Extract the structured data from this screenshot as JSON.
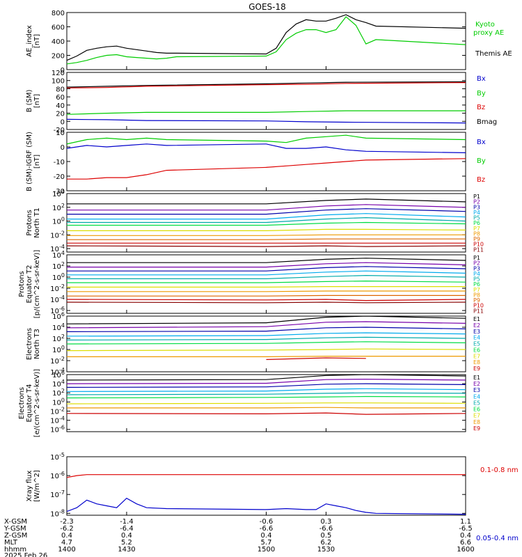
{
  "title": "GOES-18",
  "colors": {
    "black": "#000000",
    "green": "#00cc00",
    "blue": "#0000cc",
    "red": "#dd0000",
    "purple": "#7700aa",
    "navy": "#0000aa",
    "cyan": "#00aaee",
    "teal": "#00aaaa",
    "lgreen": "#00dd44",
    "yellow": "#dddd00",
    "orange": "#ee9900",
    "dorange": "#dd6600",
    "dred": "#cc0000",
    "dark": "#880000"
  },
  "chart_data": [
    {
      "type": "line",
      "ylabel": "AE_index\n[nT]",
      "ylim": [
        0,
        800
      ],
      "ticks": [
        "800",
        "600",
        "400",
        "200",
        "0"
      ],
      "tickvals": [
        800,
        600,
        400,
        200,
        0
      ],
      "scale": "linear",
      "x": [
        1400,
        1405,
        1410,
        1415,
        1420,
        1425,
        1430,
        1435,
        1440,
        1445,
        1450,
        1455,
        1500,
        1505,
        1510,
        1515,
        1520,
        1525,
        1530,
        1535,
        1540,
        1545,
        1550,
        1555,
        1600
      ],
      "series": [
        {
          "name": "Kyoto proxy AE",
          "color": "green",
          "values": [
            80,
            100,
            130,
            170,
            200,
            210,
            180,
            170,
            160,
            150,
            160,
            180,
            190,
            250,
            420,
            510,
            560,
            560,
            520,
            560,
            740,
            620,
            360,
            420,
            350
          ]
        },
        {
          "name": "Themis AE",
          "color": "black",
          "values": [
            130,
            190,
            270,
            300,
            320,
            330,
            300,
            280,
            260,
            240,
            230,
            230,
            220,
            300,
            520,
            640,
            700,
            680,
            680,
            720,
            770,
            700,
            660,
            610,
            580
          ]
        }
      ],
      "legend": [
        {
          "text": "Kyoto",
          "color": "green"
        },
        {
          "text": "proxy AE",
          "color": "green"
        },
        {
          "text": "Themis AE",
          "color": "black"
        }
      ]
    },
    {
      "type": "line",
      "ylabel": "B (SM)\n[nT]",
      "ylim": [
        -20,
        120
      ],
      "ticks": [
        "120",
        "100",
        "80",
        "60",
        "40",
        "20",
        "0",
        "-20"
      ],
      "tickvals": [
        120,
        100,
        80,
        60,
        40,
        20,
        0,
        -20
      ],
      "scale": "linear",
      "x": [
        1400,
        1420,
        1440,
        1500,
        1520,
        1540,
        1600
      ],
      "series": [
        {
          "name": "Bmag",
          "color": "black",
          "values": [
            84,
            86,
            88,
            92,
            94,
            96,
            97
          ]
        },
        {
          "name": "Bz",
          "color": "red",
          "values": [
            82,
            83,
            86,
            90,
            91,
            93,
            95
          ]
        },
        {
          "name": "By",
          "color": "green",
          "values": [
            17,
            20,
            22,
            22,
            24,
            26,
            26
          ]
        },
        {
          "name": "Bx",
          "color": "blue",
          "values": [
            5,
            4,
            2,
            1,
            -1,
            -2,
            -4
          ]
        }
      ],
      "legend": [
        {
          "text": "Bx",
          "color": "blue"
        },
        {
          "text": "By",
          "color": "green"
        },
        {
          "text": "Bz",
          "color": "red"
        },
        {
          "text": "Bmag",
          "color": "black"
        }
      ]
    },
    {
      "type": "line",
      "ylabel": "B (SM)-IGRF (SM)\n[nT]",
      "ylim": [
        -30,
        10
      ],
      "ticks": [
        "10",
        "0",
        "-10",
        "-20",
        "-30"
      ],
      "tickvals": [
        10,
        0,
        -10,
        -20,
        -30
      ],
      "scale": "linear",
      "x": [
        1400,
        1410,
        1420,
        1430,
        1440,
        1450,
        1500,
        1510,
        1520,
        1530,
        1540,
        1550,
        1600
      ],
      "series": [
        {
          "name": "By",
          "color": "green",
          "values": [
            2,
            5,
            6,
            5,
            6,
            5,
            4,
            3,
            6,
            7,
            8,
            6,
            5
          ]
        },
        {
          "name": "Bx",
          "color": "blue",
          "values": [
            -1,
            1,
            0,
            1,
            2,
            1,
            2,
            -1,
            -1,
            0,
            -2,
            -3,
            -4
          ]
        },
        {
          "name": "Bz",
          "color": "red",
          "values": [
            -22,
            -22,
            -21,
            -21,
            -19,
            -16,
            -14,
            -13,
            -12,
            -11,
            -10,
            -9,
            -8
          ]
        }
      ],
      "legend": [
        {
          "text": "Bx",
          "color": "blue"
        },
        {
          "text": "By",
          "color": "green"
        },
        {
          "text": "Bz",
          "color": "red"
        }
      ]
    },
    {
      "type": "line",
      "ylabel": "Protons\nNorth T1",
      "scale": "log",
      "ylim": [
        -4.5,
        4
      ],
      "ticks": [
        "10^4",
        "10^2",
        "10^0",
        "10^-2",
        "10^-4"
      ],
      "tickvals": [
        4,
        2,
        0,
        -2,
        -4
      ],
      "x": [
        1400,
        1500,
        1530,
        1550,
        1600
      ],
      "series": [
        {
          "name": "P1",
          "color": "black",
          "values": [
            2.5,
            2.5,
            3.0,
            3.2,
            2.8
          ]
        },
        {
          "name": "P2",
          "color": "purple",
          "values": [
            1.6,
            1.6,
            2.2,
            2.4,
            2.0
          ]
        },
        {
          "name": "P3",
          "color": "navy",
          "values": [
            1.0,
            1.0,
            1.6,
            1.8,
            1.4
          ]
        },
        {
          "name": "P4",
          "color": "cyan",
          "values": [
            0.3,
            0.3,
            0.9,
            1.1,
            0.6
          ]
        },
        {
          "name": "P5",
          "color": "teal",
          "values": [
            -0.2,
            -0.2,
            0.3,
            0.5,
            0.0
          ]
        },
        {
          "name": "P6",
          "color": "lgreen",
          "values": [
            -0.6,
            -0.6,
            -0.3,
            -0.2,
            -0.4
          ]
        },
        {
          "name": "P7",
          "color": "yellow",
          "values": [
            -1.4,
            -1.4,
            -1.2,
            -1.2,
            -1.3
          ]
        },
        {
          "name": "P8",
          "color": "orange",
          "values": [
            -2.1,
            -2.1,
            -2.0,
            -2.0,
            -2.0
          ]
        },
        {
          "name": "P9",
          "color": "dorange",
          "values": [
            -2.7,
            -2.7,
            -2.6,
            -2.6,
            -2.6
          ]
        },
        {
          "name": "P10",
          "color": "dred",
          "values": [
            -3.2,
            -3.2,
            -3.2,
            -3.2,
            -3.2
          ]
        },
        {
          "name": "P11",
          "color": "dark",
          "values": [
            -3.6,
            -3.7,
            -3.6,
            -3.7,
            -3.6
          ]
        }
      ]
    },
    {
      "type": "line",
      "ylabel": "Protons\nEquator T2\n[p/(cm^2-s-sr-keV)]",
      "scale": "log",
      "ylim": [
        -6.5,
        4
      ],
      "ticks": [
        "10^4",
        "10^2",
        "10^0",
        "10^-2",
        "10^-4",
        "10^-6"
      ],
      "tickvals": [
        4,
        2,
        0,
        -2,
        -4,
        -6
      ],
      "x": [
        1400,
        1500,
        1530,
        1550,
        1600
      ],
      "series": [
        {
          "name": "P1",
          "color": "black",
          "values": [
            2.6,
            2.6,
            3.2,
            3.4,
            3.0
          ]
        },
        {
          "name": "P2",
          "color": "purple",
          "values": [
            1.8,
            1.8,
            2.4,
            2.6,
            2.2
          ]
        },
        {
          "name": "P3",
          "color": "navy",
          "values": [
            1.1,
            1.1,
            1.7,
            1.9,
            1.5
          ]
        },
        {
          "name": "P4",
          "color": "cyan",
          "values": [
            0.4,
            0.4,
            0.9,
            1.1,
            0.7
          ]
        },
        {
          "name": "P5",
          "color": "teal",
          "values": [
            -0.3,
            -0.3,
            0.1,
            0.3,
            0.0
          ]
        },
        {
          "name": "P6",
          "color": "lgreen",
          "values": [
            -1.0,
            -1.0,
            -0.8,
            -0.7,
            -0.9
          ]
        },
        {
          "name": "P7",
          "color": "yellow",
          "values": [
            -1.8,
            -1.8,
            -1.7,
            -1.7,
            -1.7
          ]
        },
        {
          "name": "P8",
          "color": "orange",
          "values": [
            -2.6,
            -2.6,
            -2.5,
            -2.5,
            -2.5
          ]
        },
        {
          "name": "P9",
          "color": "dorange",
          "values": [
            -3.4,
            -3.4,
            -3.3,
            -3.3,
            -3.3
          ]
        },
        {
          "name": "P10",
          "color": "dred",
          "values": [
            -4.0,
            -4.1,
            -4.0,
            -4.2,
            -4.0
          ]
        },
        {
          "name": "P11",
          "color": "dark",
          "values": [
            -4.5,
            -4.6,
            -4.5,
            -4.6,
            -4.5
          ]
        }
      ]
    },
    {
      "type": "line",
      "ylabel": "Electrons\nNorth T3",
      "scale": "log",
      "ylim": [
        -4,
        6
      ],
      "ticks": [
        "10^6",
        "10^4",
        "10^2",
        "10^0",
        "10^-2",
        "10^-4"
      ],
      "tickvals": [
        6,
        4,
        2,
        0,
        -2,
        -4
      ],
      "x": [
        1400,
        1500,
        1530,
        1550,
        1600
      ],
      "series": [
        {
          "name": "E1",
          "color": "black",
          "values": [
            4.6,
            4.8,
            5.8,
            6.0,
            5.6
          ]
        },
        {
          "name": "E2",
          "color": "purple",
          "values": [
            3.9,
            4.1,
            4.9,
            5.0,
            4.7
          ]
        },
        {
          "name": "E3",
          "color": "navy",
          "values": [
            3.2,
            3.3,
            3.9,
            4.0,
            3.7
          ]
        },
        {
          "name": "E4",
          "color": "cyan",
          "values": [
            2.4,
            2.5,
            2.9,
            3.0,
            2.8
          ]
        },
        {
          "name": "E5",
          "color": "teal",
          "values": [
            1.7,
            1.8,
            2.1,
            2.2,
            2.0
          ]
        },
        {
          "name": "E6",
          "color": "lgreen",
          "values": [
            1.0,
            1.1,
            1.3,
            1.4,
            1.2
          ]
        },
        {
          "name": "E7",
          "color": "yellow",
          "values": [
            -0.2,
            -0.1,
            0.0,
            0.1,
            0.0
          ]
        },
        {
          "name": "E8",
          "color": "orange",
          "values": [
            -1.3,
            -1.3,
            -1.2,
            -1.2,
            -1.2
          ]
        },
        {
          "name": "E9",
          "color": "dred",
          "values": [
            null,
            -1.8,
            -1.5,
            -1.6,
            null
          ]
        }
      ]
    },
    {
      "type": "line",
      "ylabel": "Electrons\nEquator T4\n[e/(cm^2-s-sr-keV)]",
      "scale": "log",
      "ylim": [
        -6.5,
        6
      ],
      "ticks": [
        "10^6",
        "10^4",
        "10^2",
        "10^0",
        "10^-2",
        "10^-4",
        "10^-6"
      ],
      "tickvals": [
        6,
        4,
        2,
        0,
        -2,
        -4,
        -6
      ],
      "x": [
        1400,
        1500,
        1530,
        1550,
        1600
      ],
      "series": [
        {
          "name": "E1",
          "color": "black",
          "values": [
            4.8,
            4.9,
            5.8,
            6.0,
            5.7
          ]
        },
        {
          "name": "E2",
          "color": "purple",
          "values": [
            4.0,
            4.1,
            4.9,
            5.0,
            4.8
          ]
        },
        {
          "name": "E3",
          "color": "navy",
          "values": [
            3.2,
            3.3,
            3.9,
            4.0,
            3.8
          ]
        },
        {
          "name": "E4",
          "color": "cyan",
          "values": [
            2.3,
            2.4,
            2.8,
            2.9,
            2.7
          ]
        },
        {
          "name": "E5",
          "color": "teal",
          "values": [
            1.6,
            1.7,
            1.9,
            2.0,
            1.9
          ]
        },
        {
          "name": "E6",
          "color": "lgreen",
          "values": [
            0.9,
            1.0,
            1.1,
            1.2,
            1.1
          ]
        },
        {
          "name": "E7",
          "color": "yellow",
          "values": [
            -0.4,
            -0.3,
            -0.2,
            -0.2,
            -0.3
          ]
        },
        {
          "name": "E8",
          "color": "orange",
          "values": [
            -1.3,
            -1.3,
            -1.2,
            -1.3,
            -1.3
          ]
        },
        {
          "name": "E9",
          "color": "dred",
          "values": [
            -2.5,
            -2.6,
            -2.4,
            -2.7,
            -2.5
          ]
        }
      ]
    },
    {
      "type": "line",
      "ylabel": "Xray flux\n[W/m^2]",
      "scale": "log",
      "ylim": [
        -8.1,
        -5
      ],
      "ticks": [
        "10^-5",
        "10^-6",
        "10^-7",
        "10^-8"
      ],
      "tickvals": [
        -5,
        -6,
        -7,
        -8
      ],
      "x": [
        1400,
        1405,
        1410,
        1415,
        1420,
        1425,
        1430,
        1435,
        1440,
        1450,
        1500,
        1510,
        1520,
        1525,
        1530,
        1535,
        1540,
        1545,
        1550,
        1555,
        1600
      ],
      "series": [
        {
          "name": "0.1-0.8 nm",
          "color": "red",
          "values": [
            -6.1,
            -6.0,
            -5.95,
            -5.95,
            -5.95,
            -5.95,
            -5.95,
            -5.95,
            -5.95,
            -5.95,
            -5.95,
            -5.95,
            -5.95,
            -5.95,
            -5.95,
            -5.95,
            -5.95,
            -5.95,
            -5.95,
            -5.95,
            -5.95
          ]
        },
        {
          "name": "0.05-0.4 nm",
          "color": "blue",
          "values": [
            -7.9,
            -7.7,
            -7.3,
            -7.5,
            -7.6,
            -7.7,
            -7.2,
            -7.5,
            -7.7,
            -7.75,
            -7.8,
            -7.75,
            -7.8,
            -7.8,
            -7.5,
            -7.6,
            -7.7,
            -7.85,
            -7.95,
            -8.0,
            -8.05
          ]
        }
      ],
      "legend": [
        {
          "text": "0.1-0.8 nm",
          "color": "red"
        },
        {
          "text": "0.05-0.4 nm",
          "color": "blue"
        }
      ]
    }
  ],
  "xaxis": {
    "xlim": [
      1400,
      1600
    ],
    "tick_hhmm": [
      1400,
      1430,
      1500,
      1530,
      1600
    ],
    "rows": [
      {
        "label": "X-GSM",
        "values": [
          "-2.3",
          "-1.4",
          "-0.6",
          "0.3",
          "1.1"
        ]
      },
      {
        "label": "Y-GSM",
        "values": [
          "-6.2",
          "-6.4",
          "-6.6",
          "-6.6",
          "-6.5"
        ]
      },
      {
        "label": "Z-GSM",
        "values": [
          "0.4",
          "0.4",
          "0.4",
          "0.5",
          "0.4"
        ]
      },
      {
        "label": "MLT",
        "values": [
          "4.7",
          "5.2",
          "5.7",
          "6.2",
          "6.6"
        ]
      },
      {
        "label": "hhmm",
        "values": [
          "1400",
          "1430",
          "1500",
          "1530",
          "1600"
        ]
      }
    ],
    "date": "2025 Feb 26"
  }
}
